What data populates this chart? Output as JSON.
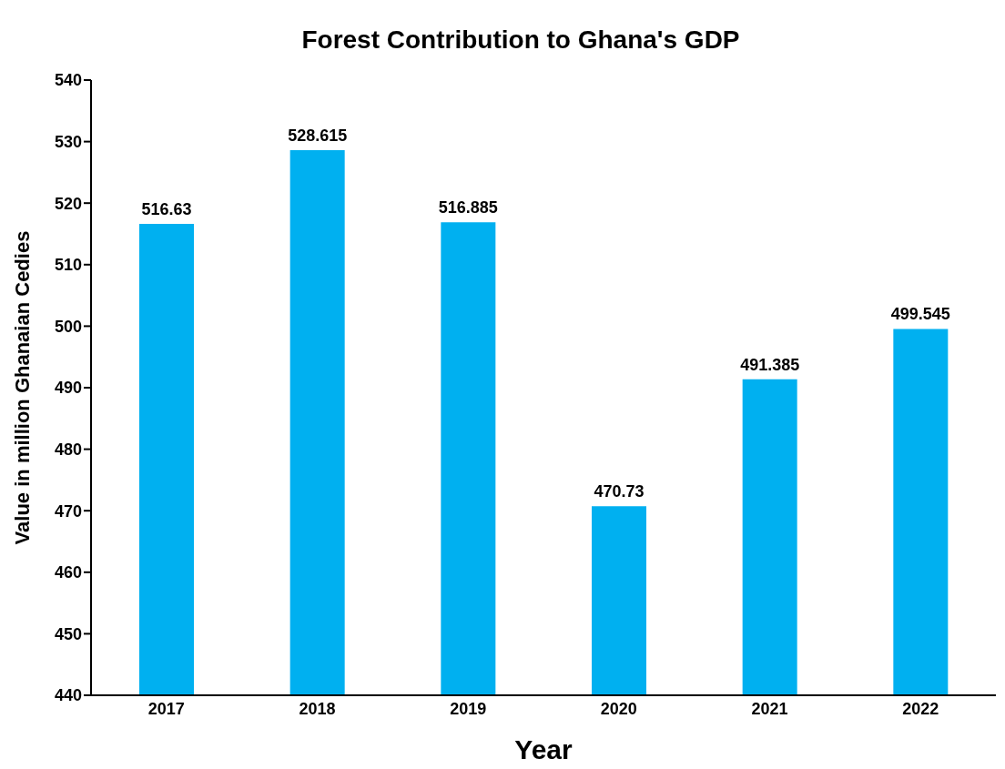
{
  "chart_data": {
    "type": "bar",
    "title": "Forest Contribution to Ghana's GDP",
    "xlabel": "Year",
    "ylabel": "Value in million Ghanaian Cedies",
    "categories": [
      "2017",
      "2018",
      "2019",
      "2020",
      "2021",
      "2022"
    ],
    "values": [
      516.63,
      528.615,
      516.885,
      470.73,
      491.385,
      499.545
    ],
    "color": "#00b0f0",
    "ylim": [
      440,
      540
    ],
    "yticks": [
      440,
      450,
      460,
      470,
      480,
      490,
      500,
      510,
      520,
      530,
      540
    ],
    "grid": false,
    "data_labels": true
  }
}
